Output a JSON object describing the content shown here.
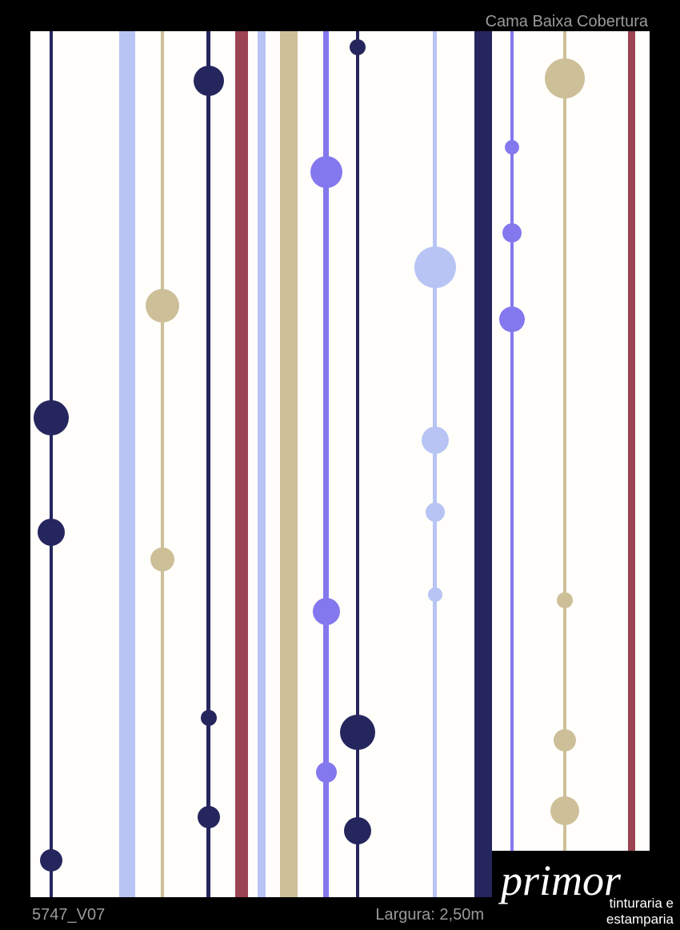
{
  "header": {
    "title": "Cama Baixa Cobertura"
  },
  "footer": {
    "code": "5747_V07",
    "width": "Largura: 2,50m"
  },
  "logo": {
    "name": "primor",
    "line1": "tinturaria e",
    "line2": "estamparia"
  }
}
